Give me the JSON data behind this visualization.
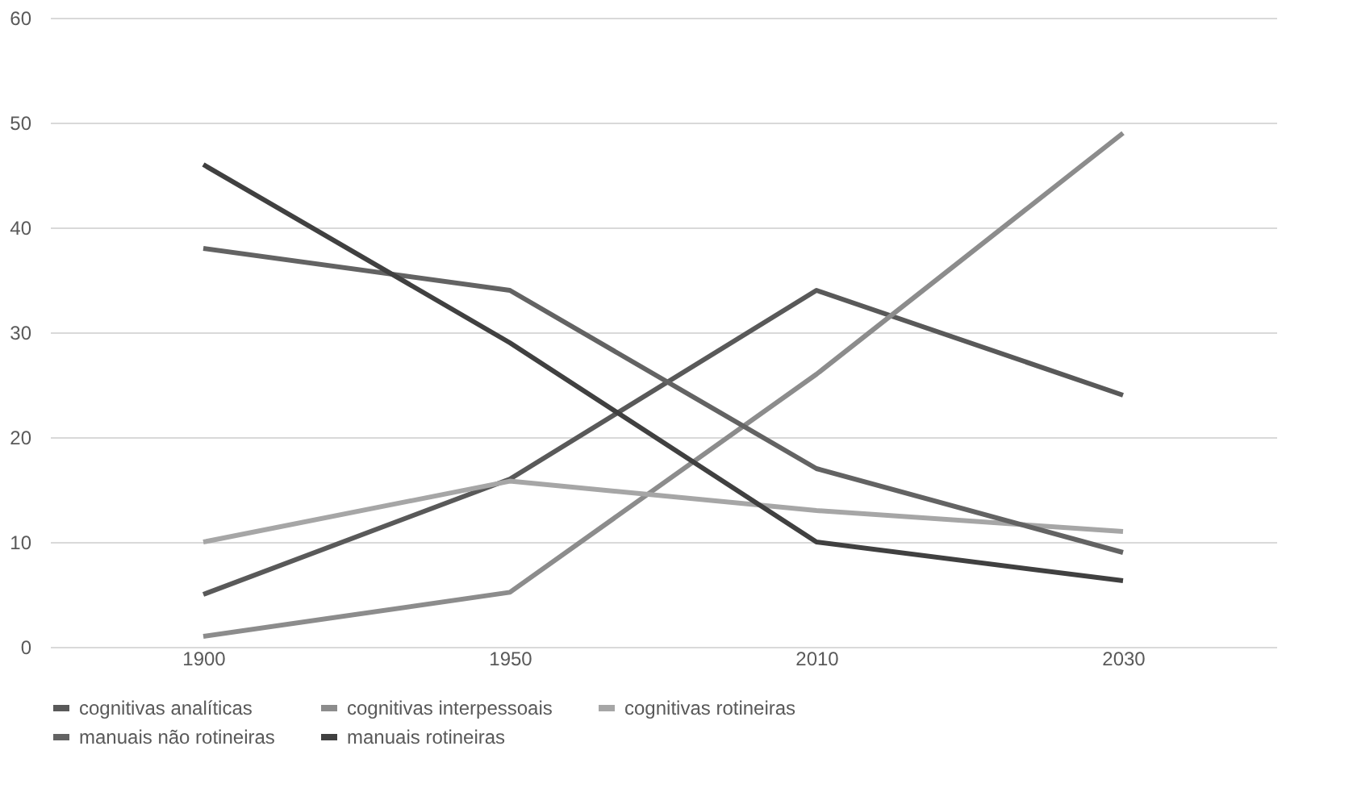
{
  "chart_data": {
    "type": "line",
    "categories": [
      "1900",
      "1950",
      "2010",
      "2030"
    ],
    "series": [
      {
        "name": "cognitivas analíticas",
        "color": "#595959",
        "values": [
          5,
          16,
          34,
          24
        ]
      },
      {
        "name": "cognitivas interpessoais",
        "color": "#8c8c8c",
        "values": [
          1,
          5.2,
          26,
          49
        ]
      },
      {
        "name": "cognitivas rotineiras",
        "color": "#a6a6a6",
        "values": [
          10,
          15.8,
          13,
          11
        ]
      },
      {
        "name": "manuais não rotineiras",
        "color": "#636363",
        "values": [
          38,
          34,
          17,
          9
        ]
      },
      {
        "name": "manuais rotineiras",
        "color": "#404040",
        "values": [
          46,
          29,
          10,
          6.3
        ]
      }
    ],
    "ylim": [
      0,
      60
    ],
    "yticks": [
      0,
      10,
      20,
      30,
      40,
      50,
      60
    ],
    "grid": "y",
    "legend": "bottom",
    "marker": "none",
    "line_style": "solid"
  }
}
